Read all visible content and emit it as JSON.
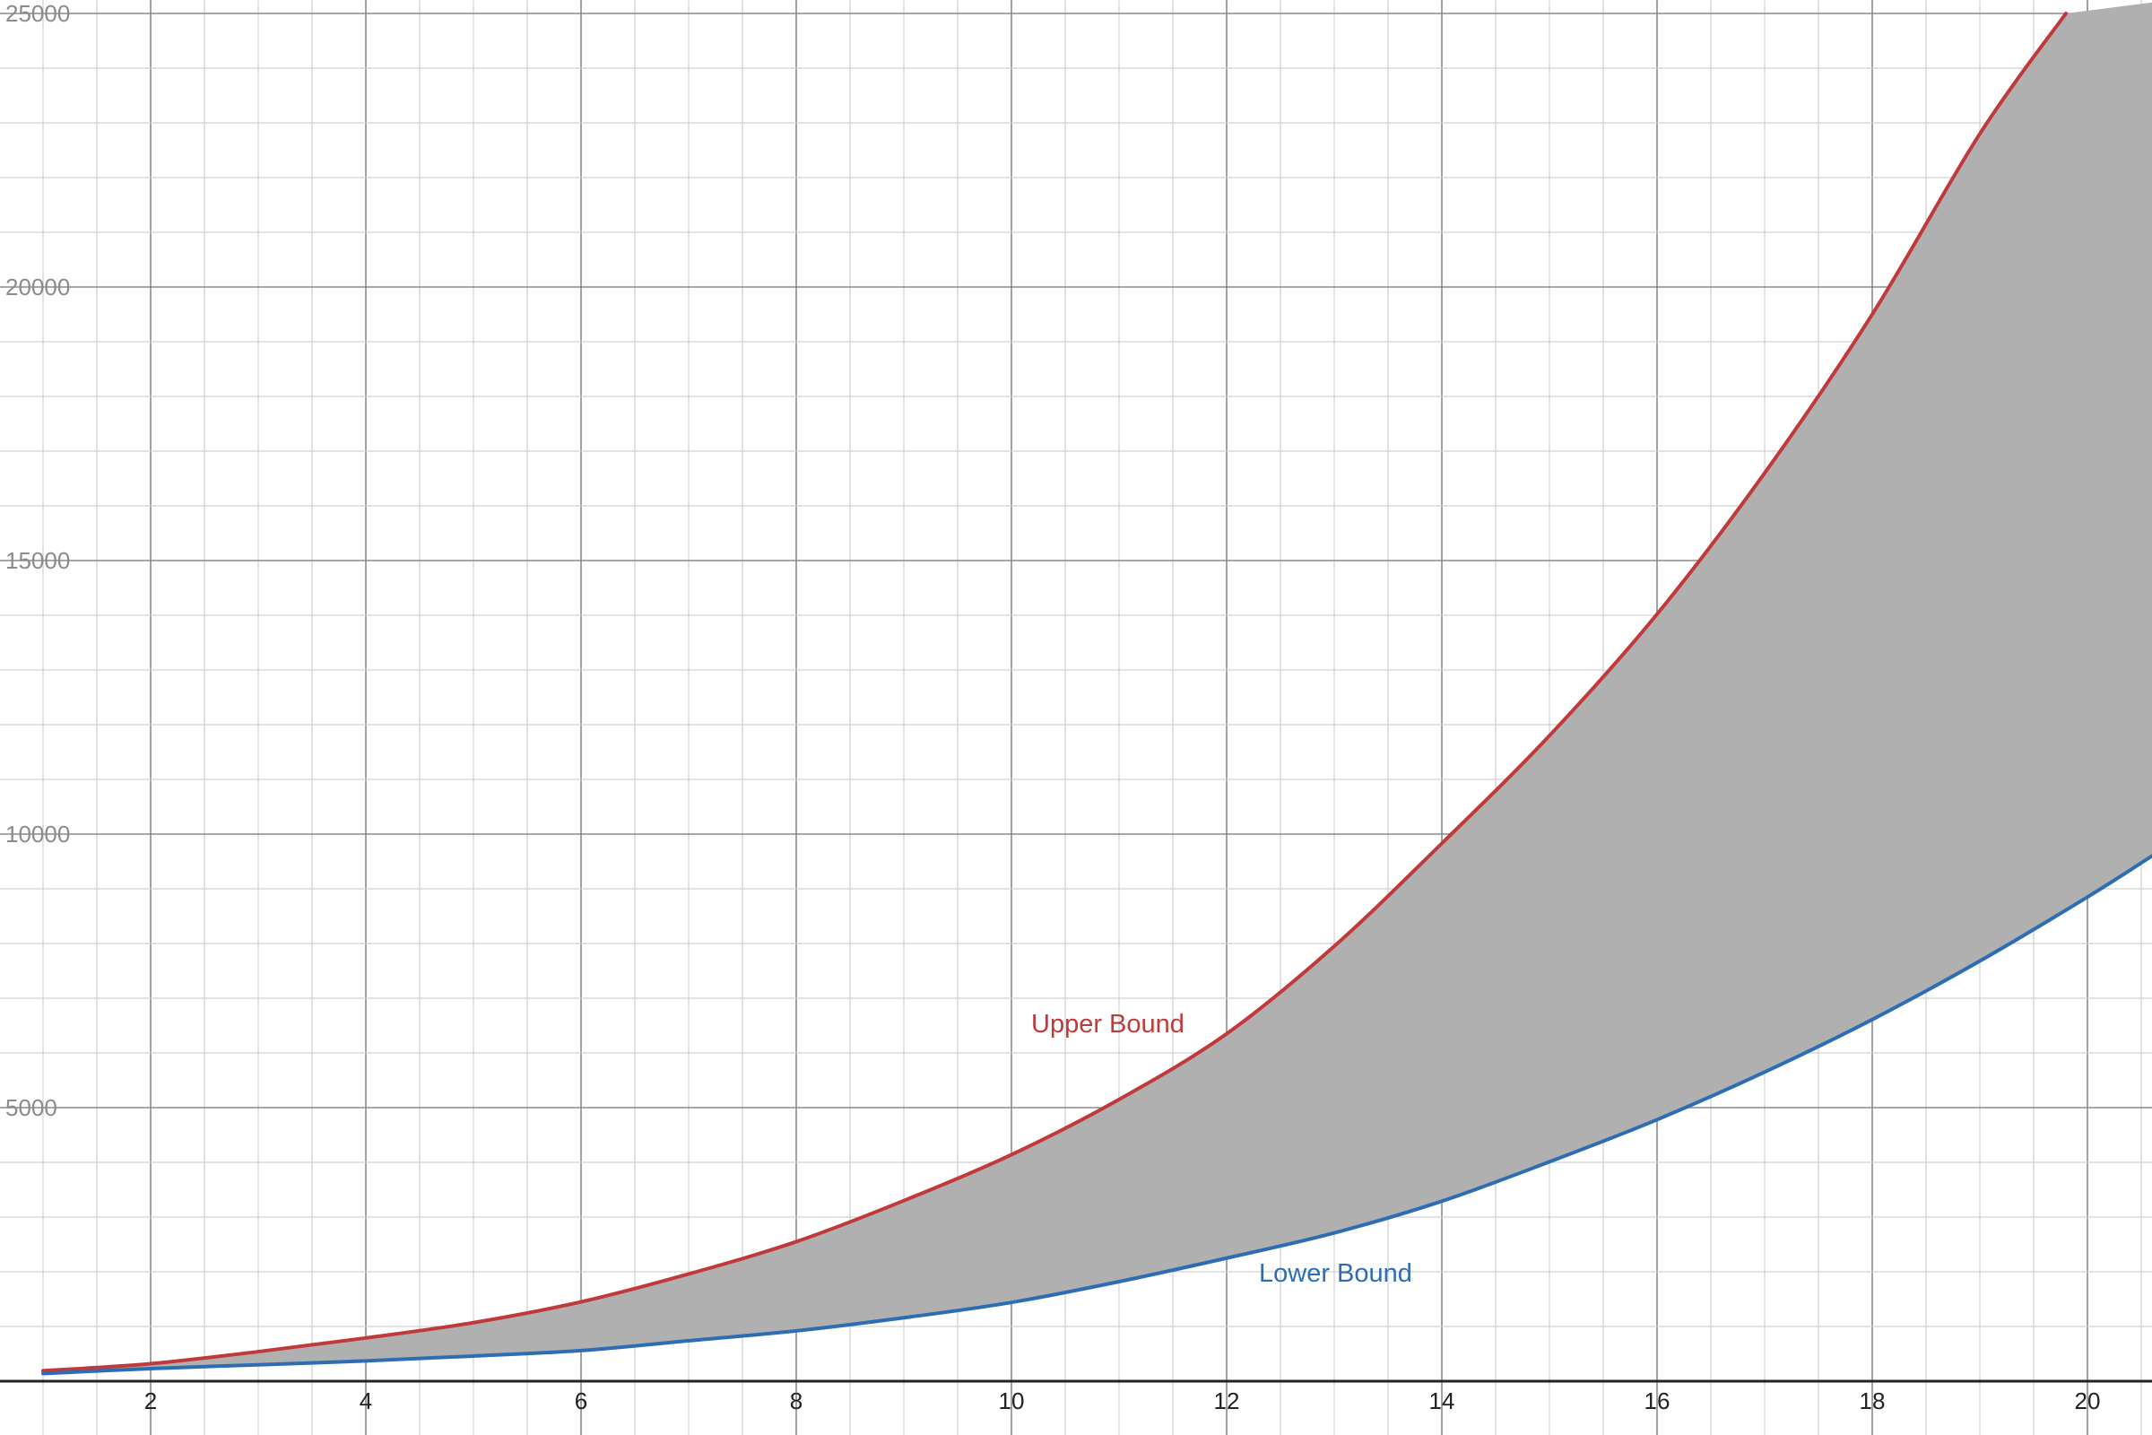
{
  "chart_data": {
    "type": "area",
    "title": "",
    "xlabel": "",
    "ylabel": "",
    "xlim": [
      0.6,
      20.6
    ],
    "ylim": [
      -1000,
      25200
    ],
    "grid": true,
    "x_ticks": [
      2,
      4,
      6,
      8,
      10,
      12,
      14,
      16,
      18,
      20
    ],
    "x_tick_labels": [
      "2",
      "4",
      "6",
      "8",
      "10",
      "12",
      "14",
      "16",
      "18",
      "20"
    ],
    "y_ticks": [
      5000,
      10000,
      15000,
      20000,
      25000
    ],
    "y_tick_labels": [
      "5000",
      "10000",
      "15000",
      "20000",
      "25000"
    ],
    "shaded_between": [
      "Upper Bound",
      "Lower Bound"
    ],
    "fill_color": "#b0b0b0",
    "series": [
      {
        "name": "Upper Bound",
        "color": "#c0393b",
        "x": [
          1,
          2,
          3,
          4,
          5,
          6,
          7,
          8,
          9,
          10,
          11,
          12,
          13,
          14,
          15,
          16,
          17,
          18,
          19,
          19.8
        ],
        "y": [
          190,
          320,
          540,
          790,
          1070,
          1450,
          1960,
          2550,
          3300,
          4140,
          5150,
          6350,
          7950,
          9830,
          11800,
          14020,
          16600,
          19500,
          22800,
          25000
        ]
      },
      {
        "name": "Lower Bound",
        "color": "#2d6db5",
        "x": [
          1,
          2,
          3,
          4,
          5,
          6,
          7,
          8,
          9,
          10,
          11,
          12,
          13,
          14,
          15,
          16,
          17,
          18,
          19,
          20,
          20.6
        ],
        "y": [
          140,
          230,
          300,
          370,
          460,
          560,
          740,
          920,
          1160,
          1440,
          1820,
          2250,
          2710,
          3290,
          4010,
          4780,
          5650,
          6610,
          7680,
          8850,
          9600
        ]
      }
    ]
  }
}
